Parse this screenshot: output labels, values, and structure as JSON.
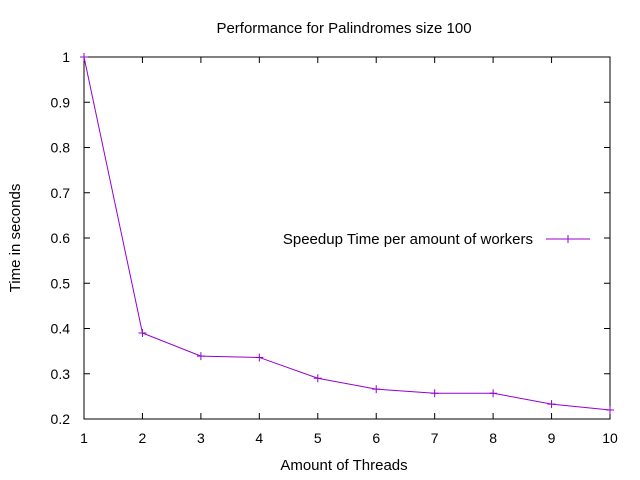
{
  "chart_data": {
    "type": "line",
    "title": "Performance for Palindromes size 100",
    "xlabel": "Amount of Threads",
    "ylabel": "Time in seconds",
    "xlim": [
      1,
      10
    ],
    "ylim": [
      0.2,
      1
    ],
    "xticks": [
      1,
      2,
      3,
      4,
      5,
      6,
      7,
      8,
      9,
      10
    ],
    "yticks": [
      0.2,
      0.3,
      0.4,
      0.5,
      0.6,
      0.7,
      0.8,
      0.9,
      1
    ],
    "ytick_labels": [
      "0.2",
      "0.3",
      "0.4",
      "0.5",
      "0.6",
      "0.7",
      "0.8",
      "0.9",
      "1"
    ],
    "grid": false,
    "legend_position": "center-right",
    "x": [
      1,
      2,
      3,
      4,
      5,
      6,
      7,
      8,
      9,
      10
    ],
    "series": [
      {
        "name": "Speedup Time per amount of workers",
        "color": "#9400d3",
        "marker": "plus",
        "values": [
          1.0,
          0.39,
          0.339,
          0.336,
          0.29,
          0.266,
          0.257,
          0.257,
          0.233,
          0.22
        ]
      }
    ]
  }
}
